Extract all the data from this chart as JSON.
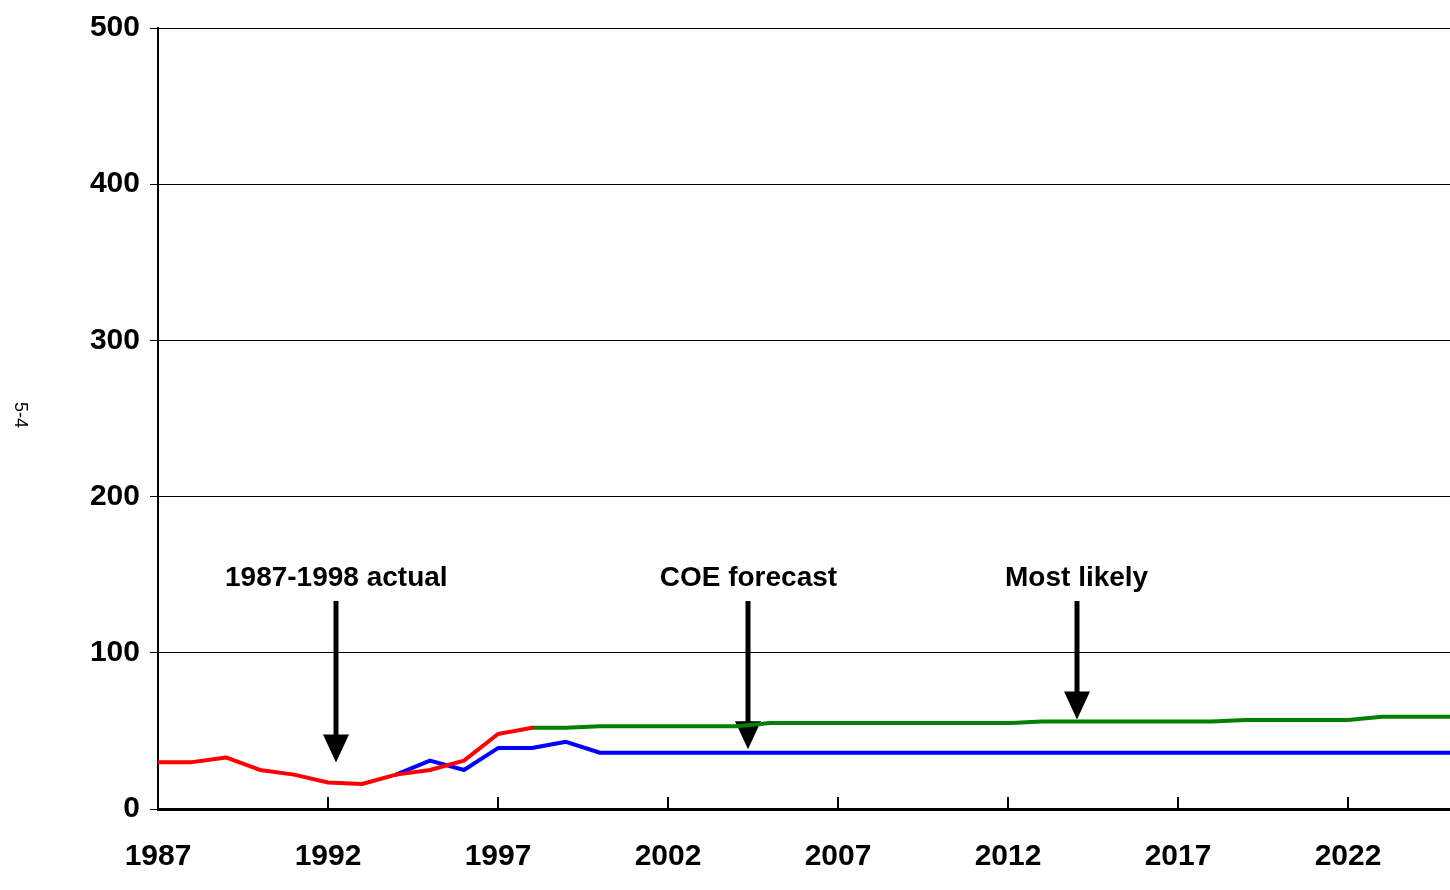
{
  "chart_data": {
    "type": "line",
    "xlim": [
      1987,
      2025
    ],
    "ylim": [
      0,
      500
    ],
    "xticks": [
      1987,
      1992,
      1997,
      2002,
      2007,
      2012,
      2017,
      2022
    ],
    "yticks": [
      0,
      100,
      200,
      300,
      400,
      500
    ],
    "grid": "y",
    "marker": "none",
    "line_style": "solid",
    "legend": false,
    "series": [
      {
        "color": "#ff0000",
        "x": [
          1987,
          1988,
          1989,
          1990,
          1991,
          1992,
          1993,
          1994,
          1995,
          1996,
          1997,
          1998
        ],
        "values": [
          30,
          30,
          33,
          25,
          22,
          17,
          16,
          22,
          25,
          31,
          48,
          52
        ]
      },
      {
        "color": "#0000ff",
        "x": [
          1994,
          1995,
          1996,
          1997,
          1998,
          1999,
          2000,
          2025
        ],
        "values": [
          22,
          31,
          25,
          39,
          39,
          43,
          36,
          36
        ]
      },
      {
        "color": "#008000",
        "x": [
          1998,
          1999,
          2000,
          2004,
          2005,
          2012,
          2013,
          2018,
          2019,
          2022,
          2023,
          2025
        ],
        "values": [
          52,
          52,
          53,
          53,
          55,
          55,
          56,
          56,
          57,
          57,
          59,
          59
        ]
      }
    ],
    "annotations": [
      "1987-1998 actual",
      "COE forecast",
      "Most likely",
      "5-4"
    ]
  }
}
